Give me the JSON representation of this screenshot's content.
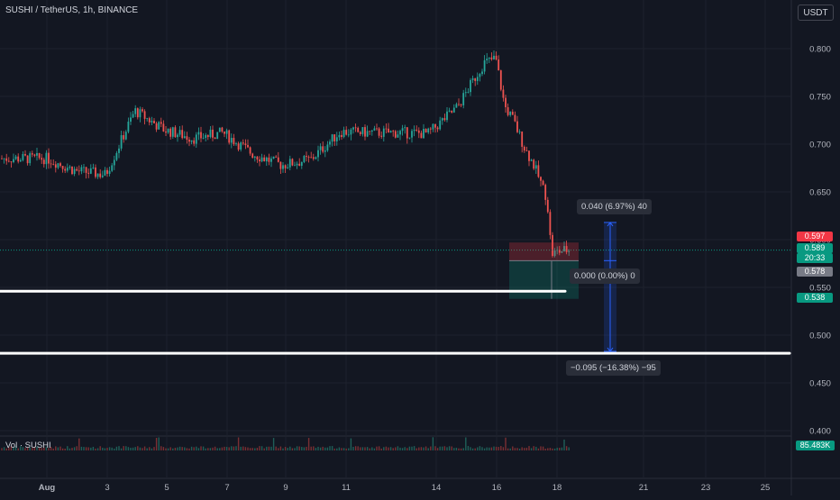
{
  "header": {
    "symbol_label": "SUSHI / TetherUS, 1h, BINANCE",
    "currency": "USDT"
  },
  "volume": {
    "label": "Vol · SUSHI",
    "value": "85.483K"
  },
  "price_tags": {
    "sell": "0.597",
    "current": "0.589",
    "countdown": "20:33",
    "mid": "0.578",
    "stop": "0.538"
  },
  "measure": {
    "upper_label": "0.040 (6.97%) 40",
    "middle_label": "0.000 (0.00%) 0",
    "lower_label": "−0.095 (−16.38%) −95"
  },
  "colors": {
    "bg": "#131722",
    "up": "#26a69a",
    "down": "#ef5350",
    "grid": "#1e222d",
    "text": "#d1d4dc",
    "measure": "#2962ff"
  },
  "chart_data": {
    "type": "candlestick",
    "title": "SUSHI / TetherUS, 1h, BINANCE",
    "y_ticks": [
      "0.800",
      "0.750",
      "0.700",
      "0.650",
      "0.600",
      "0.550",
      "0.500",
      "0.450",
      "0.400"
    ],
    "ylim": [
      0.395,
      0.825
    ],
    "x_ticks": [
      "Aug",
      "3",
      "5",
      "7",
      "9",
      "11",
      "14",
      "16",
      "18",
      "21",
      "23",
      "25"
    ],
    "grid": true,
    "close_path": [
      [
        1,
        0.685
      ],
      [
        2,
        0.672
      ],
      [
        3,
        0.668
      ],
      [
        4,
        0.735
      ],
      [
        5,
        0.715
      ],
      [
        6,
        0.706
      ],
      [
        7,
        0.712
      ],
      [
        8,
        0.69
      ],
      [
        9,
        0.678
      ],
      [
        10,
        0.684
      ],
      [
        11,
        0.713
      ],
      [
        12,
        0.712
      ],
      [
        13,
        0.712
      ],
      [
        14,
        0.711
      ],
      [
        15,
        0.739
      ],
      [
        15.6,
        0.77
      ],
      [
        15.9,
        0.785
      ],
      [
        16.3,
        0.79
      ],
      [
        16.6,
        0.74
      ],
      [
        16.9,
        0.725
      ],
      [
        17.3,
        0.695
      ],
      [
        17.6,
        0.678
      ],
      [
        18.05,
        0.643
      ],
      [
        18.2,
        0.585
      ],
      [
        18.6,
        0.589
      ]
    ],
    "horizontal_lines": [
      0.546,
      0.481
    ],
    "position": {
      "entry": 0.578,
      "target": 0.597,
      "stop": 0.538
    },
    "price_range_measure": {
      "from": 0.578,
      "to_up": 0.618,
      "to_down": 0.483
    }
  }
}
